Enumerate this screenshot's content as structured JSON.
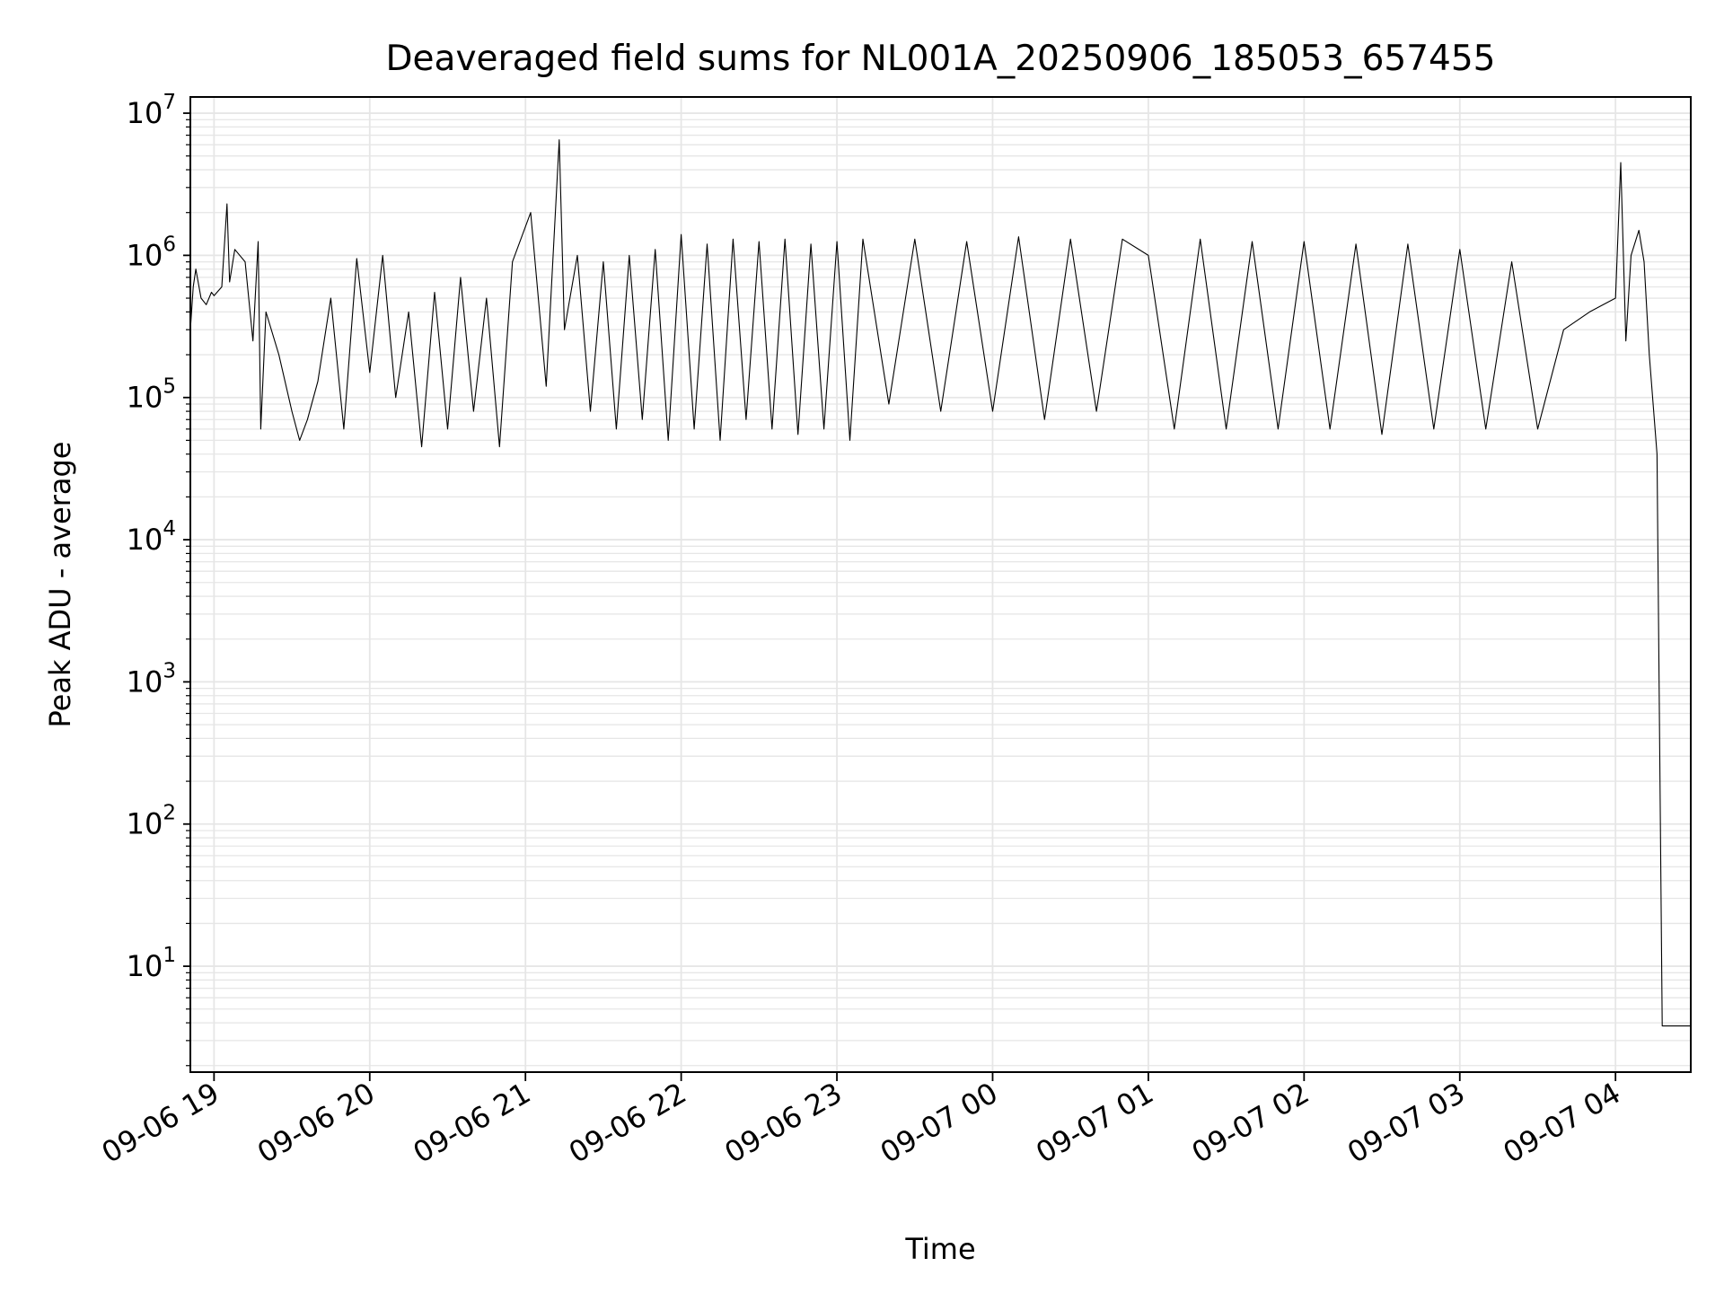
{
  "chart_data": {
    "type": "line",
    "title": "Deaveraged field sums for NL001A_20250906_185053_657455",
    "xlabel": "Time",
    "ylabel": "Peak ADU - average",
    "x_scale": "time",
    "y_scale": "log",
    "xlim": [
      "2025-09-06 18:50:53",
      "2025-09-07 04:29:00"
    ],
    "ylim": [
      1.8,
      13000000
    ],
    "x_ticks": [
      "09-06 19",
      "09-06 20",
      "09-06 21",
      "09-06 22",
      "09-06 23",
      "09-07 00",
      "09-07 01",
      "09-07 02",
      "09-07 03",
      "09-07 04"
    ],
    "y_ticks": [
      {
        "base": "10",
        "exp": "1"
      },
      {
        "base": "10",
        "exp": "2"
      },
      {
        "base": "10",
        "exp": "3"
      },
      {
        "base": "10",
        "exp": "4"
      },
      {
        "base": "10",
        "exp": "5"
      },
      {
        "base": "10",
        "exp": "6"
      },
      {
        "base": "10",
        "exp": "7"
      }
    ],
    "grid": true,
    "line_color": "#000000",
    "grid_color": "#e6e6e6",
    "series": [
      {
        "points": [
          [
            "2025-09-06 18:50:53",
            300000
          ],
          [
            "2025-09-06 18:52:00",
            600000
          ],
          [
            "2025-09-06 18:53:00",
            800000
          ],
          [
            "2025-09-06 18:55:00",
            500000
          ],
          [
            "2025-09-06 18:57:00",
            450000
          ],
          [
            "2025-09-06 18:59:00",
            550000
          ],
          [
            "2025-09-06 19:00:00",
            520000
          ],
          [
            "2025-09-06 19:03:00",
            600000
          ],
          [
            "2025-09-06 19:05:00",
            2300000
          ],
          [
            "2025-09-06 19:06:00",
            650000
          ],
          [
            "2025-09-06 19:08:00",
            1100000
          ],
          [
            "2025-09-06 19:12:00",
            900000
          ],
          [
            "2025-09-06 19:15:00",
            250000
          ],
          [
            "2025-09-06 19:17:00",
            1250000
          ],
          [
            "2025-09-06 19:18:00",
            60000
          ],
          [
            "2025-09-06 19:20:00",
            400000
          ],
          [
            "2025-09-06 19:25:00",
            200000
          ],
          [
            "2025-09-06 19:30:00",
            80000
          ],
          [
            "2025-09-06 19:33:00",
            50000
          ],
          [
            "2025-09-06 19:36:00",
            70000
          ],
          [
            "2025-09-06 19:40:00",
            130000
          ],
          [
            "2025-09-06 19:45:00",
            500000
          ],
          [
            "2025-09-06 19:50:00",
            60000
          ],
          [
            "2025-09-06 19:55:00",
            950000
          ],
          [
            "2025-09-06 20:00:00",
            150000
          ],
          [
            "2025-09-06 20:05:00",
            1000000
          ],
          [
            "2025-09-06 20:10:00",
            100000
          ],
          [
            "2025-09-06 20:15:00",
            400000
          ],
          [
            "2025-09-06 20:20:00",
            45000
          ],
          [
            "2025-09-06 20:25:00",
            550000
          ],
          [
            "2025-09-06 20:30:00",
            60000
          ],
          [
            "2025-09-06 20:35:00",
            700000
          ],
          [
            "2025-09-06 20:40:00",
            80000
          ],
          [
            "2025-09-06 20:45:00",
            500000
          ],
          [
            "2025-09-06 20:50:00",
            45000
          ],
          [
            "2025-09-06 20:55:00",
            900000
          ],
          [
            "2025-09-06 21:02:00",
            2000000
          ],
          [
            "2025-09-06 21:08:00",
            120000
          ],
          [
            "2025-09-06 21:13:00",
            6500000
          ],
          [
            "2025-09-06 21:15:00",
            300000
          ],
          [
            "2025-09-06 21:20:00",
            1000000
          ],
          [
            "2025-09-06 21:25:00",
            80000
          ],
          [
            "2025-09-06 21:30:00",
            900000
          ],
          [
            "2025-09-06 21:35:00",
            60000
          ],
          [
            "2025-09-06 21:40:00",
            1000000
          ],
          [
            "2025-09-06 21:45:00",
            70000
          ],
          [
            "2025-09-06 21:50:00",
            1100000
          ],
          [
            "2025-09-06 21:55:00",
            50000
          ],
          [
            "2025-09-06 22:00:00",
            1400000
          ],
          [
            "2025-09-06 22:05:00",
            60000
          ],
          [
            "2025-09-06 22:10:00",
            1200000
          ],
          [
            "2025-09-06 22:15:00",
            50000
          ],
          [
            "2025-09-06 22:20:00",
            1300000
          ],
          [
            "2025-09-06 22:25:00",
            70000
          ],
          [
            "2025-09-06 22:30:00",
            1250000
          ],
          [
            "2025-09-06 22:35:00",
            60000
          ],
          [
            "2025-09-06 22:40:00",
            1300000
          ],
          [
            "2025-09-06 22:45:00",
            55000
          ],
          [
            "2025-09-06 22:50:00",
            1200000
          ],
          [
            "2025-09-06 22:55:00",
            60000
          ],
          [
            "2025-09-06 23:00:00",
            1250000
          ],
          [
            "2025-09-06 23:05:00",
            50000
          ],
          [
            "2025-09-06 23:10:00",
            1300000
          ],
          [
            "2025-09-06 23:20:00",
            90000
          ],
          [
            "2025-09-06 23:30:00",
            1300000
          ],
          [
            "2025-09-06 23:40:00",
            80000
          ],
          [
            "2025-09-06 23:50:00",
            1250000
          ],
          [
            "2025-09-07 00:00:00",
            80000
          ],
          [
            "2025-09-07 00:10:00",
            1350000
          ],
          [
            "2025-09-07 00:20:00",
            70000
          ],
          [
            "2025-09-07 00:30:00",
            1300000
          ],
          [
            "2025-09-07 00:40:00",
            80000
          ],
          [
            "2025-09-07 00:50:00",
            1300000
          ],
          [
            "2025-09-07 01:00:00",
            1000000
          ],
          [
            "2025-09-07 01:10:00",
            60000
          ],
          [
            "2025-09-07 01:20:00",
            1300000
          ],
          [
            "2025-09-07 01:30:00",
            60000
          ],
          [
            "2025-09-07 01:40:00",
            1250000
          ],
          [
            "2025-09-07 01:50:00",
            60000
          ],
          [
            "2025-09-07 02:00:00",
            1250000
          ],
          [
            "2025-09-07 02:10:00",
            60000
          ],
          [
            "2025-09-07 02:20:00",
            1200000
          ],
          [
            "2025-09-07 02:30:00",
            55000
          ],
          [
            "2025-09-07 02:40:00",
            1200000
          ],
          [
            "2025-09-07 02:50:00",
            60000
          ],
          [
            "2025-09-07 03:00:00",
            1100000
          ],
          [
            "2025-09-07 03:10:00",
            60000
          ],
          [
            "2025-09-07 03:20:00",
            900000
          ],
          [
            "2025-09-07 03:30:00",
            60000
          ],
          [
            "2025-09-07 03:40:00",
            300000
          ],
          [
            "2025-09-07 03:50:00",
            400000
          ],
          [
            "2025-09-07 04:00:00",
            500000
          ],
          [
            "2025-09-07 04:02:00",
            4500000
          ],
          [
            "2025-09-07 04:04:00",
            250000
          ],
          [
            "2025-09-07 04:06:00",
            1000000
          ],
          [
            "2025-09-07 04:09:00",
            1500000
          ],
          [
            "2025-09-07 04:11:00",
            900000
          ],
          [
            "2025-09-07 04:13:00",
            200000
          ],
          [
            "2025-09-07 04:16:00",
            40000
          ],
          [
            "2025-09-07 04:18:00",
            3.8
          ],
          [
            "2025-09-07 04:29:00",
            3.8
          ]
        ]
      }
    ]
  }
}
